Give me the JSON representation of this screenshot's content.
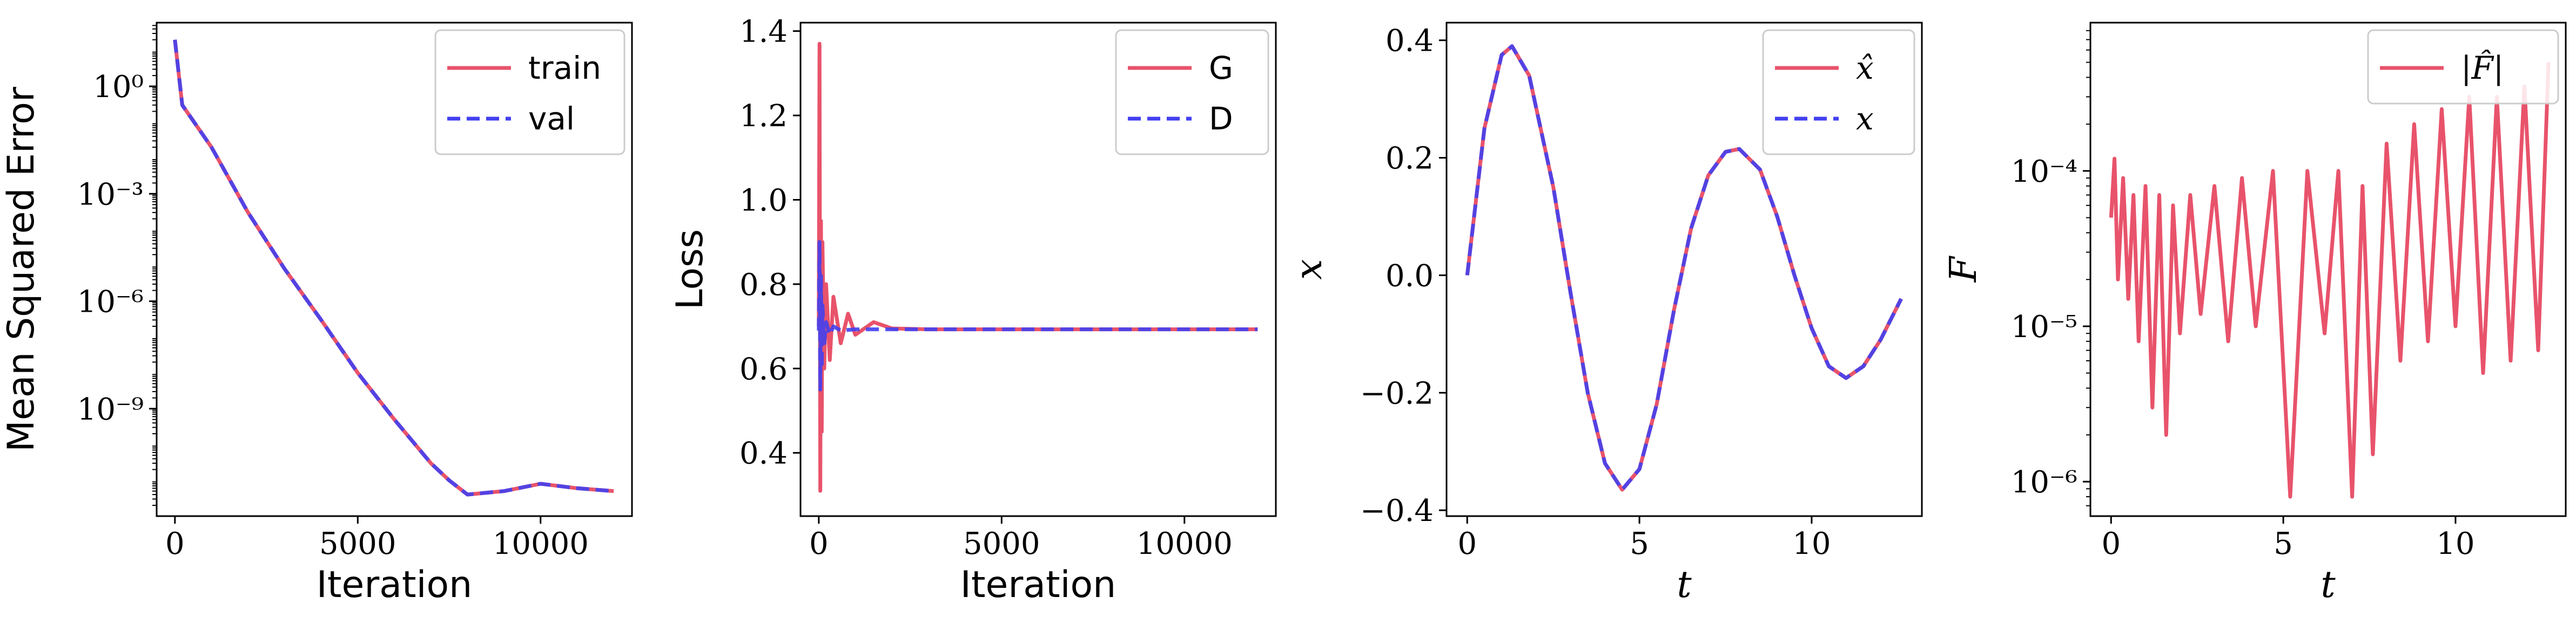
{
  "colors": {
    "red": "#e8536b",
    "blue": "#4340f0"
  },
  "chart_data": [
    {
      "type": "line",
      "xlabel": "Iteration",
      "ylabel": "Mean Squared Error",
      "yscale": "log",
      "xlim": [
        -500,
        12500
      ],
      "ylim": [
        1e-12,
        60
      ],
      "xticks": [
        0,
        5000,
        10000
      ],
      "xtick_labels": [
        "0",
        "5000",
        "10000"
      ],
      "yticks": [
        1,
        0.001,
        1e-06,
        1e-09
      ],
      "ytick_labels": [
        "10⁰",
        "10⁻³",
        "10⁻⁶",
        "10⁻⁹"
      ],
      "legend": "upper right",
      "series": [
        {
          "name": "train",
          "color": "#e8536b",
          "dash": "solid",
          "x": [
            0,
            200,
            1000,
            2000,
            3000,
            4000,
            5000,
            6000,
            7000,
            7500,
            8000,
            9000,
            10000,
            11000,
            12000
          ],
          "y": [
            20,
            0.3,
            0.02,
            0.0003,
            8e-06,
            3e-07,
            1e-08,
            5e-10,
            3e-11,
            1e-11,
            4e-12,
            5e-12,
            8e-12,
            6e-12,
            5e-12
          ]
        },
        {
          "name": "val",
          "color": "#4340f0",
          "dash": "dashed",
          "x": [
            0,
            200,
            1000,
            2000,
            3000,
            4000,
            5000,
            6000,
            7000,
            7500,
            8000,
            9000,
            10000,
            11000,
            12000
          ],
          "y": [
            20,
            0.3,
            0.02,
            0.0003,
            8e-06,
            3e-07,
            1e-08,
            5e-10,
            3e-11,
            1e-11,
            4e-12,
            5e-12,
            8e-12,
            6e-12,
            5e-12
          ]
        }
      ]
    },
    {
      "type": "line",
      "xlabel": "Iteration",
      "ylabel": "Loss",
      "xlim": [
        -500,
        12500
      ],
      "ylim": [
        0.25,
        1.42
      ],
      "xticks": [
        0,
        5000,
        10000
      ],
      "xtick_labels": [
        "0",
        "5000",
        "10000"
      ],
      "yticks": [
        0.4,
        0.6,
        0.8,
        1.0,
        1.2,
        1.4
      ],
      "ytick_labels": [
        "0.4",
        "0.6",
        "0.8",
        "1.0",
        "1.2",
        "1.4"
      ],
      "legend": "upper right",
      "series": [
        {
          "name": "G",
          "color": "#e8536b",
          "dash": "solid",
          "x": [
            0,
            20,
            40,
            60,
            80,
            100,
            150,
            200,
            300,
            400,
            600,
            800,
            1000,
            1500,
            2000,
            3000,
            12000
          ],
          "y": [
            0.7,
            1.37,
            0.31,
            0.95,
            0.45,
            0.9,
            0.6,
            0.8,
            0.62,
            0.77,
            0.66,
            0.73,
            0.68,
            0.71,
            0.695,
            0.693,
            0.693
          ]
        },
        {
          "name": "D",
          "color": "#4340f0",
          "dash": "dashed",
          "x": [
            0,
            20,
            40,
            60,
            80,
            100,
            150,
            200,
            300,
            400,
            600,
            1000,
            12000
          ],
          "y": [
            0.69,
            0.9,
            0.55,
            0.82,
            0.6,
            0.75,
            0.66,
            0.71,
            0.68,
            0.7,
            0.69,
            0.693,
            0.693
          ]
        }
      ]
    },
    {
      "type": "line",
      "xlabel": "t",
      "ylabel": "x",
      "xlim": [
        -0.6,
        13.2
      ],
      "ylim": [
        -0.41,
        0.43
      ],
      "xticks": [
        0,
        5,
        10
      ],
      "xtick_labels": [
        "0",
        "5",
        "10"
      ],
      "yticks": [
        -0.4,
        -0.2,
        0.0,
        0.2,
        0.4
      ],
      "ytick_labels": [
        "−0.4",
        "−0.2",
        "0.0",
        "0.2",
        "0.4"
      ],
      "legend": "upper right",
      "series": [
        {
          "name": "x̂",
          "color": "#e8536b",
          "dash": "solid",
          "x": [
            0,
            0.5,
            1.0,
            1.3,
            1.8,
            2.5,
            3.0,
            3.5,
            4.0,
            4.5,
            5.0,
            5.5,
            6.0,
            6.5,
            7.0,
            7.5,
            7.9,
            8.5,
            9.0,
            9.5,
            10.0,
            10.5,
            11.0,
            11.5,
            12.0,
            12.6
          ],
          "y": [
            0.0,
            0.25,
            0.375,
            0.39,
            0.34,
            0.15,
            -0.03,
            -0.2,
            -0.32,
            -0.365,
            -0.33,
            -0.22,
            -0.06,
            0.08,
            0.17,
            0.21,
            0.215,
            0.18,
            0.1,
            0.0,
            -0.09,
            -0.155,
            -0.175,
            -0.155,
            -0.11,
            -0.04
          ]
        },
        {
          "name": "x",
          "color": "#4340f0",
          "dash": "dashed",
          "x": [
            0,
            0.5,
            1.0,
            1.3,
            1.8,
            2.5,
            3.0,
            3.5,
            4.0,
            4.5,
            5.0,
            5.5,
            6.0,
            6.5,
            7.0,
            7.5,
            7.9,
            8.5,
            9.0,
            9.5,
            10.0,
            10.5,
            11.0,
            11.5,
            12.0,
            12.6
          ],
          "y": [
            0.0,
            0.25,
            0.375,
            0.39,
            0.34,
            0.15,
            -0.03,
            -0.2,
            -0.32,
            -0.365,
            -0.33,
            -0.22,
            -0.06,
            0.08,
            0.17,
            0.21,
            0.215,
            0.18,
            0.1,
            0.0,
            -0.09,
            -0.155,
            -0.175,
            -0.155,
            -0.11,
            -0.04
          ]
        }
      ]
    },
    {
      "type": "line",
      "xlabel": "t",
      "ylabel": "F",
      "yscale": "log",
      "xlim": [
        -0.6,
        13.2
      ],
      "ylim": [
        6e-07,
        0.0009
      ],
      "xticks": [
        0,
        5,
        10
      ],
      "xtick_labels": [
        "0",
        "5",
        "10"
      ],
      "yticks": [
        1e-06,
        1e-05,
        0.0001
      ],
      "ytick_labels": [
        "10⁻⁶",
        "10⁻⁵",
        "10⁻⁴"
      ],
      "legend": "upper right",
      "series": [
        {
          "name": "|F̂|",
          "color": "#e8536b",
          "dash": "solid",
          "x": [
            0,
            0.1,
            0.2,
            0.35,
            0.5,
            0.65,
            0.8,
            1.0,
            1.2,
            1.4,
            1.6,
            1.8,
            2.0,
            2.3,
            2.6,
            3.0,
            3.4,
            3.8,
            4.2,
            4.7,
            5.2,
            5.7,
            6.2,
            6.6,
            7.0,
            7.3,
            7.6,
            8.0,
            8.4,
            8.8,
            9.2,
            9.6,
            10.0,
            10.4,
            10.8,
            11.2,
            11.6,
            12.0,
            12.4,
            12.7
          ],
          "y": [
            5e-05,
            0.00012,
            2e-05,
            9e-05,
            1.5e-05,
            7e-05,
            8e-06,
            8e-05,
            3e-06,
            7e-05,
            2e-06,
            6e-05,
            9e-06,
            7e-05,
            1.2e-05,
            8e-05,
            8e-06,
            9e-05,
            1e-05,
            0.0001,
            8e-07,
            0.0001,
            9e-06,
            0.0001,
            8e-07,
            8e-05,
            1.5e-06,
            0.00015,
            6e-06,
            0.0002,
            8e-06,
            0.00025,
            1e-05,
            0.0003,
            5e-06,
            0.0003,
            6e-06,
            0.00035,
            7e-06,
            0.0005
          ]
        }
      ]
    }
  ]
}
